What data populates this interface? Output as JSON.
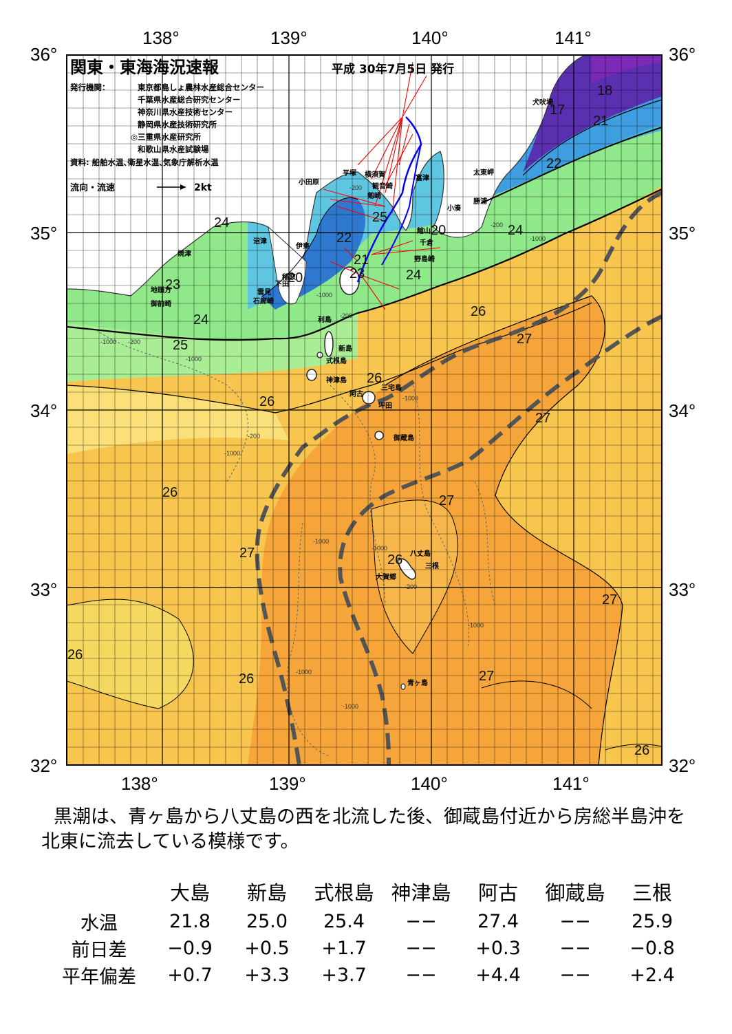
{
  "map": {
    "title": "関東・東海海況速報",
    "issue_date": "平成 30年7月5日 発行",
    "issuers_label": "発行機関：",
    "issuers": [
      "東京都島しょ農林水産総合センター",
      "千葉県水産総合研究センター",
      "神奈川県水産技術センター",
      "静岡県水産技術研究所",
      "◎三重県水産研究所",
      "和歌山県水産試験場"
    ],
    "source": "資料: 船舶水温､衛星水温､気象庁解析水温",
    "flow_legend": "流向・流速",
    "flow_scale": "2kt",
    "lon_ticks": [
      "138°",
      "139°",
      "140°",
      "141°"
    ],
    "lat_ticks": [
      "36°",
      "35°",
      "34°",
      "33°",
      "32°"
    ],
    "colors": {
      "kuroshio_path": "#555555",
      "warm_27": "#f5a53a",
      "warm_26": "#f8c64f",
      "warm_25": "#fbe07a",
      "cool_24": "#8fe88a",
      "cool_22": "#4fb8d8",
      "cold_20": "#2f78d0",
      "cold_18": "#5a2fb0",
      "land": "#ffffff",
      "flow_arrows": "#ff0000",
      "ship_track": "#0000ff"
    },
    "places": [
      {
        "name": "小田原"
      },
      {
        "name": "平塚"
      },
      {
        "name": "横須賀"
      },
      {
        "name": "観音崎"
      },
      {
        "name": "富津"
      },
      {
        "name": "剱崎"
      },
      {
        "name": "沼津"
      },
      {
        "name": "伊東"
      },
      {
        "name": "焼津"
      },
      {
        "name": "稲取"
      },
      {
        "name": "下田"
      },
      {
        "name": "雲見"
      },
      {
        "name": "石廊崎"
      },
      {
        "name": "地頭方"
      },
      {
        "name": "御前崎"
      },
      {
        "name": "館山"
      },
      {
        "name": "千倉"
      },
      {
        "name": "野島崎"
      },
      {
        "name": "小湊"
      },
      {
        "name": "勝浦"
      },
      {
        "name": "太東岬"
      },
      {
        "name": "犬吠埼"
      },
      {
        "name": "利島"
      },
      {
        "name": "新島"
      },
      {
        "name": "式根島"
      },
      {
        "name": "神津島"
      },
      {
        "name": "三宅島"
      },
      {
        "name": "阿古"
      },
      {
        "name": "坪田"
      },
      {
        "name": "御蔵島"
      },
      {
        "name": "八丈島"
      },
      {
        "name": "三根"
      },
      {
        "name": "大賀郷"
      },
      {
        "name": "青ヶ島"
      }
    ],
    "sst_labels": [
      "18",
      "17",
      "21",
      "22",
      "24",
      "20",
      "24",
      "25",
      "23",
      "22",
      "21",
      "20",
      "23",
      "24",
      "24",
      "26",
      "27",
      "25",
      "26",
      "26",
      "27",
      "27",
      "26",
      "26",
      "27",
      "27",
      "26",
      "27",
      "26",
      "26"
    ],
    "depth_labels": [
      "-200",
      "-1000"
    ]
  },
  "summary": "黒潮は、青ヶ島から八丈島の西を北流した後、御蔵島付近から房総半島沖を北東に流去している模様です。",
  "observations": {
    "stations": [
      "大島",
      "新島",
      "式根島",
      "神津島",
      "阿古",
      "御蔵島",
      "三根"
    ],
    "rows": [
      {
        "label": "水温",
        "values": [
          "21.8",
          "25.0",
          "25.4",
          "−−",
          "27.4",
          "−−",
          "25.9"
        ]
      },
      {
        "label": "前日差",
        "values": [
          "−0.9",
          "+0.5",
          "+1.7",
          "−−",
          "+0.3",
          "−−",
          "−0.8"
        ]
      },
      {
        "label": "平年偏差",
        "values": [
          "+0.7",
          "+3.3",
          "+3.7",
          "−−",
          "+4.4",
          "−−",
          "+2.4"
        ]
      }
    ]
  }
}
